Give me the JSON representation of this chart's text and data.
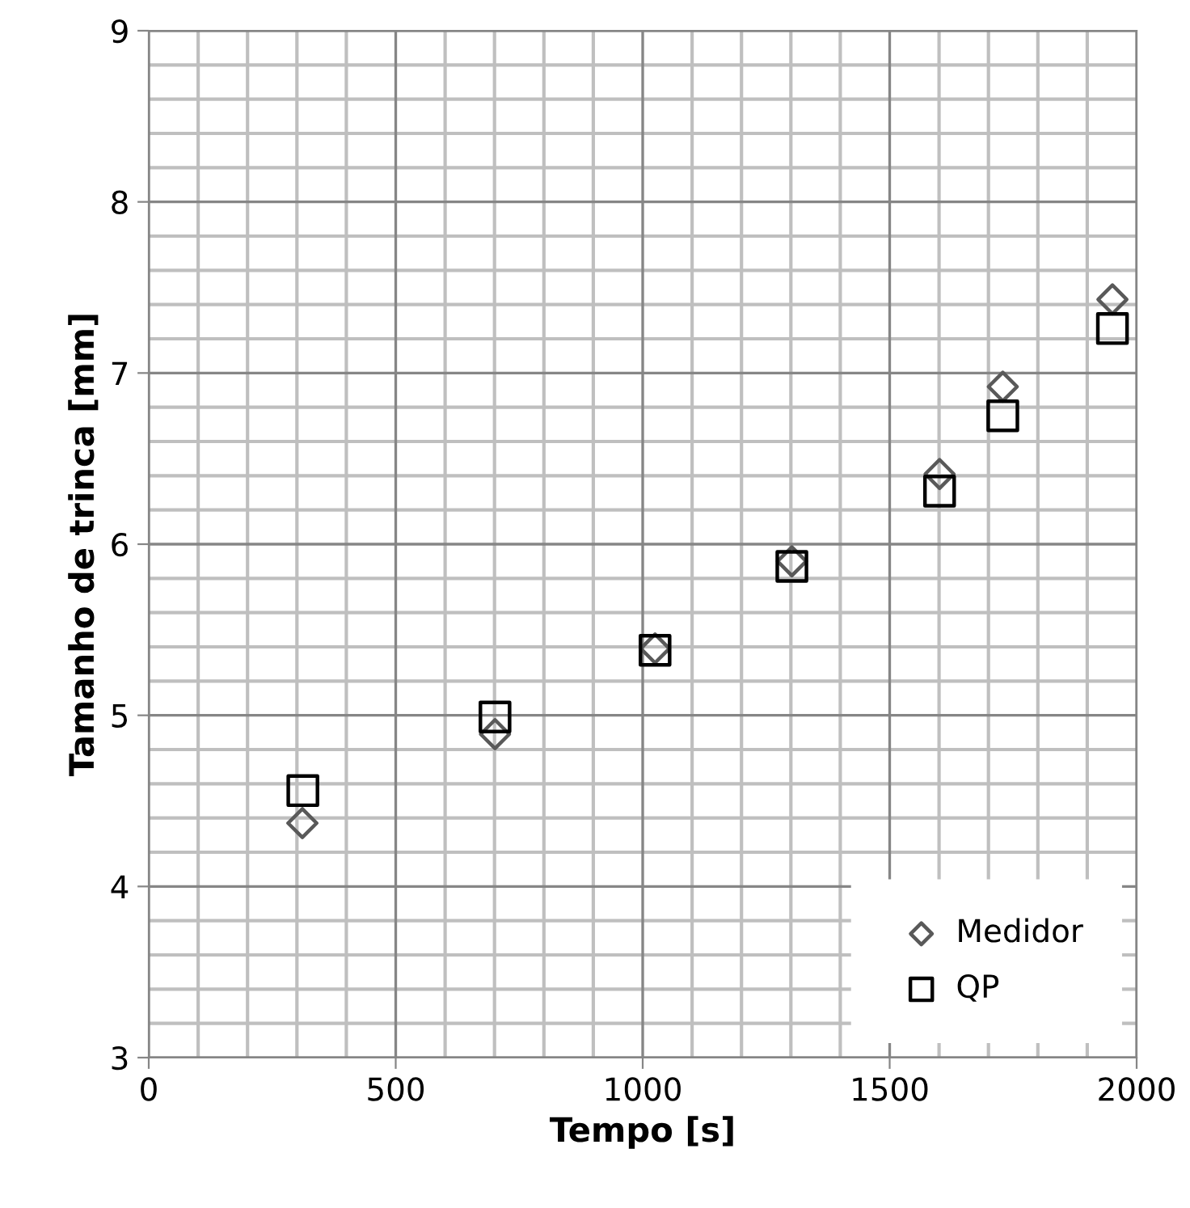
{
  "chart_data": {
    "type": "scatter",
    "xlabel": "Tempo [s]",
    "ylabel": "Tamanho de trinca [mm]",
    "xlim": [
      0,
      2000
    ],
    "ylim": [
      3,
      9
    ],
    "xticks": [
      0,
      500,
      1000,
      1500,
      2000
    ],
    "yticks": [
      3,
      4,
      5,
      6,
      7,
      8,
      9
    ],
    "grid": true,
    "legend": "bottom right",
    "series": [
      {
        "name": "Medidor",
        "color": "#595959",
        "marker": "diamond",
        "x": [
          311,
          701,
          1025,
          1302,
          1601,
          1729,
          1951
        ],
        "values": [
          4.37,
          4.89,
          5.39,
          5.9,
          6.41,
          6.92,
          7.43
        ]
      },
      {
        "name": "QP",
        "color": "#000000",
        "marker": "square",
        "x": [
          312,
          701,
          1025,
          1302,
          1601,
          1729,
          1951
        ],
        "values": [
          4.56,
          4.99,
          5.38,
          5.87,
          6.31,
          6.75,
          7.26
        ]
      }
    ]
  }
}
